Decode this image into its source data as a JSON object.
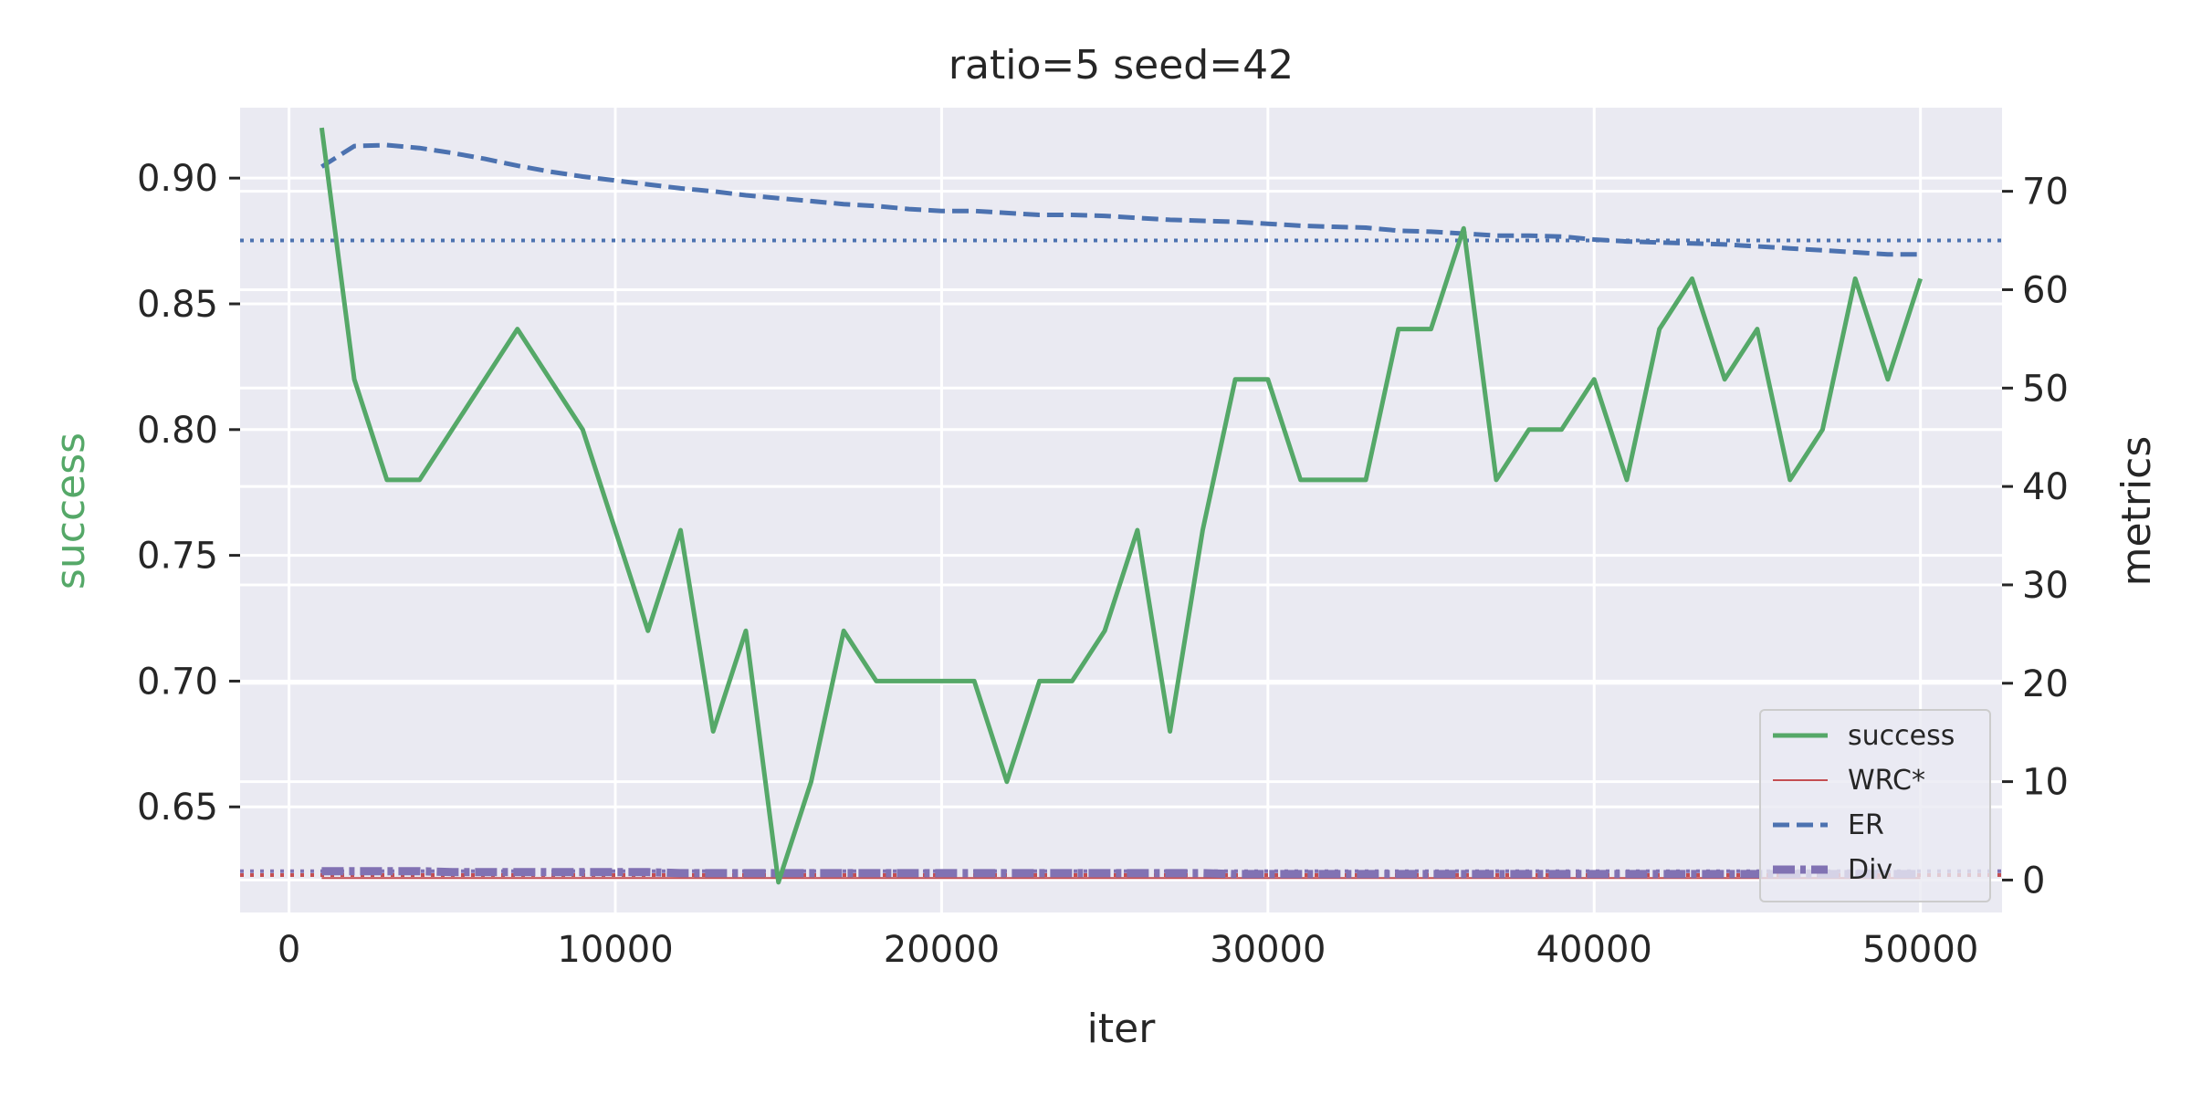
{
  "chart_data": {
    "type": "line",
    "title": "ratio=5 seed=42",
    "xlabel": "iter",
    "ylabel_left": "success",
    "ylabel_right": "metrics",
    "xlim": [
      -1500,
      52500
    ],
    "ylim_left": [
      0.608,
      0.928
    ],
    "ylim_right": [
      -3.3,
      78.5
    ],
    "xticks": [
      0,
      10000,
      20000,
      30000,
      40000,
      50000
    ],
    "yticks_left": [
      0.65,
      0.7,
      0.75,
      0.8,
      0.85,
      0.9
    ],
    "yticks_right": [
      0,
      10,
      20,
      30,
      40,
      50,
      60,
      70
    ],
    "grid": true,
    "legend_position": "lower-right",
    "colors": {
      "success": "#55a868",
      "wrc": "#c44e52",
      "er": "#4c72b0",
      "div": "#8172b3",
      "background": "#eaeaf2",
      "grid": "#ffffff"
    },
    "x": [
      1000,
      2000,
      3000,
      4000,
      5000,
      6000,
      7000,
      8000,
      9000,
      10000,
      11000,
      12000,
      13000,
      14000,
      15000,
      16000,
      17000,
      18000,
      19000,
      20000,
      21000,
      22000,
      23000,
      24000,
      25000,
      26000,
      27000,
      28000,
      29000,
      30000,
      31000,
      32000,
      33000,
      34000,
      35000,
      36000,
      37000,
      38000,
      39000,
      40000,
      41000,
      42000,
      43000,
      44000,
      45000,
      46000,
      47000,
      48000,
      49000,
      50000
    ],
    "series": [
      {
        "name": "success",
        "axis": "left",
        "style": "solid",
        "values": [
          0.92,
          0.82,
          0.78,
          0.78,
          0.8,
          0.82,
          0.84,
          0.82,
          0.8,
          0.76,
          0.72,
          0.76,
          0.68,
          0.72,
          0.62,
          0.66,
          0.72,
          0.7,
          0.7,
          0.7,
          0.7,
          0.66,
          0.7,
          0.7,
          0.72,
          0.76,
          0.68,
          0.76,
          0.82,
          0.82,
          0.78,
          0.78,
          0.78,
          0.84,
          0.84,
          0.88,
          0.78,
          0.8,
          0.8,
          0.82,
          0.78,
          0.84,
          0.86,
          0.82,
          0.84,
          0.78,
          0.8,
          0.86,
          0.82,
          0.86
        ]
      },
      {
        "name": "WRC*",
        "axis": "right",
        "style": "thin",
        "values": [
          0.2,
          0.2,
          0.2,
          0.2,
          0.2,
          0.2,
          0.2,
          0.2,
          0.2,
          0.2,
          0.2,
          0.2,
          0.2,
          0.2,
          0.2,
          0.2,
          0.2,
          0.2,
          0.2,
          0.2,
          0.2,
          0.2,
          0.2,
          0.2,
          0.2,
          0.2,
          0.2,
          0.2,
          0.2,
          0.2,
          0.2,
          0.2,
          0.2,
          0.2,
          0.2,
          0.2,
          0.2,
          0.2,
          0.2,
          0.2,
          0.2,
          0.2,
          0.2,
          0.2,
          0.2,
          0.2,
          0.2,
          0.2,
          0.2,
          0.2
        ]
      },
      {
        "name": "ER",
        "axis": "right",
        "style": "dashed",
        "values": [
          72.5,
          74.6,
          74.7,
          74.4,
          73.9,
          73.3,
          72.6,
          72.0,
          71.5,
          71.1,
          70.7,
          70.3,
          70.0,
          69.6,
          69.3,
          69.0,
          68.7,
          68.5,
          68.2,
          68.0,
          68.0,
          67.8,
          67.6,
          67.6,
          67.5,
          67.3,
          67.1,
          67.0,
          66.9,
          66.7,
          66.5,
          66.4,
          66.3,
          66.0,
          65.9,
          65.7,
          65.5,
          65.5,
          65.4,
          65.1,
          64.9,
          64.8,
          64.7,
          64.6,
          64.4,
          64.2,
          64.0,
          63.8,
          63.6,
          63.6
        ]
      },
      {
        "name": "Div",
        "axis": "right",
        "style": "dashdot-thick",
        "values": [
          0.9,
          0.9,
          0.9,
          0.9,
          0.8,
          0.8,
          0.8,
          0.8,
          0.8,
          0.8,
          0.8,
          0.7,
          0.7,
          0.7,
          0.7,
          0.7,
          0.7,
          0.7,
          0.7,
          0.7,
          0.7,
          0.7,
          0.7,
          0.7,
          0.7,
          0.7,
          0.7,
          0.7,
          0.6,
          0.6,
          0.6,
          0.6,
          0.6,
          0.6,
          0.6,
          0.6,
          0.6,
          0.6,
          0.6,
          0.6,
          0.6,
          0.6,
          0.6,
          0.6,
          0.6,
          0.6,
          0.6,
          0.6,
          0.6,
          0.6
        ]
      }
    ],
    "reference_lines": [
      {
        "axis": "right",
        "value": 65.0,
        "color": "#4c72b0",
        "style": "dotted"
      },
      {
        "axis": "right",
        "value": 0.5,
        "color": "#c44e52",
        "style": "dotted"
      },
      {
        "axis": "right",
        "value": 0.9,
        "color": "#8172b3",
        "style": "dotted"
      }
    ]
  }
}
